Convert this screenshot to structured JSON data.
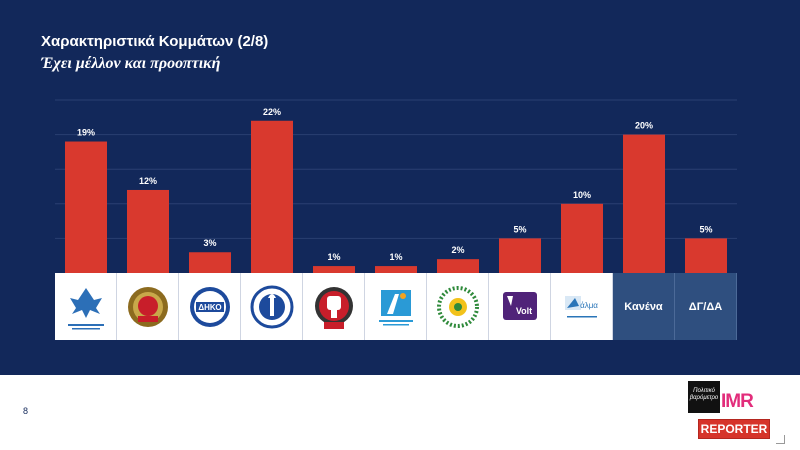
{
  "slide": {
    "title": "Χαρακτηριστικά Κομμάτων (2/8)",
    "subtitle": "Έχει μέλλον και προοπτική",
    "page_number": "8"
  },
  "colors": {
    "background": "#12285a",
    "bar": "#d9392e",
    "text_cell": "#2f4f7f"
  },
  "logos": [
    {
      "name": "disy-logo",
      "icon": "eagle-emblem",
      "caption": "ΔΗΜΟΚΡΑΤΙΚΟΣ ΣΥΝΑΓΕΡΜΟΣ"
    },
    {
      "name": "akel-logo",
      "icon": "wreath-emblem",
      "caption": "ΑΚΕΛ"
    },
    {
      "name": "diko-logo",
      "icon": "circle-badge",
      "caption": "ΔΗΚΟ"
    },
    {
      "name": "elam-logo",
      "icon": "torch-wreath-emblem",
      "caption": ""
    },
    {
      "name": "edek-logo",
      "icon": "fist-emblem",
      "caption": "ΕΔΕΚ"
    },
    {
      "name": "dipa-logo",
      "icon": "figure-emblem",
      "caption": "ΔΗΜΟΚΡΑΤΙΚΗ ΠΑΡΑΤΑΞΗ"
    },
    {
      "name": "greens-logo",
      "icon": "flower-ring-emblem",
      "caption": "ΚΙΝΗΜΑ ΟΙΚΟΛΟΓΩΝ ΣΥΝΕΡΓΑΣΙΑ ΠΟΛΙΤΩΝ"
    },
    {
      "name": "volt-logo",
      "icon": "volt-mark",
      "caption": "Volt"
    },
    {
      "name": "alma-logo",
      "icon": "dove-mark",
      "caption": "άλμα"
    }
  ],
  "text_categories": [
    {
      "name": "none-label",
      "label": "Κανένα"
    },
    {
      "name": "dk-na-label",
      "label": "ΔΓ/ΔΑ"
    }
  ],
  "brand": {
    "box_text": "Πολιτικό βαρόμετρο",
    "imr": "IMR",
    "reporter": "REPORTER"
  },
  "chart_data": {
    "type": "bar",
    "title": "Χαρακτηριστικά Κομμάτων (2/8)",
    "subtitle": "Έχει μέλλον και προοπτική",
    "categories": [
      "ΔΗΣΥ",
      "ΑΚΕΛ",
      "ΔΗΚΟ",
      "ΕΛΑΜ",
      "ΕΔΕΚ",
      "ΔΗΠΑ",
      "Οικολόγοι",
      "Volt",
      "Άλμα",
      "Κανένα",
      "ΔΓ/ΔΑ"
    ],
    "values": [
      19,
      12,
      3,
      22,
      1,
      1,
      2,
      5,
      10,
      20,
      5
    ],
    "value_labels": [
      "19%",
      "12%",
      "3%",
      "22%",
      "1%",
      "1%",
      "2%",
      "5%",
      "10%",
      "20%",
      "5%"
    ],
    "ylim": [
      0,
      25
    ],
    "grid": true,
    "legend": "none"
  }
}
